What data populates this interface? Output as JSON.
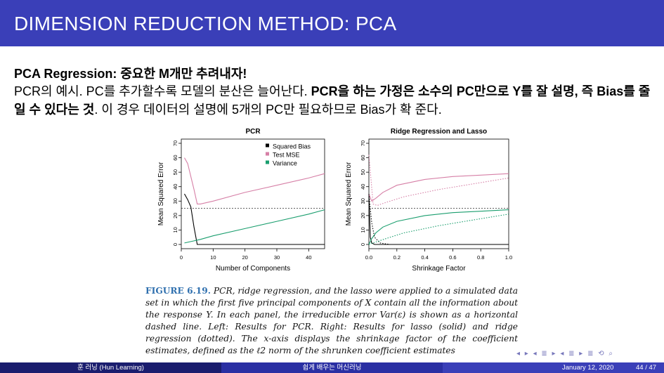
{
  "header": {
    "title": "DIMENSION REDUCTION METHOD: PCA"
  },
  "subtitle": "PCA Regression: 중요한 M개만 추려내자!",
  "paragraph": {
    "part1": "PCR의 예시. PC를 추가할수록 모델의 분산은 늘어난다. ",
    "bold": "PCR을 하는 가정은 소수의 PC만으로 Y를 잘 설명, 즉 Bias를 줄일 수 있다는 것",
    "part2": ". 이 경우 데이터의 설명에 5개의 PC만 필요하므로 Bias가 확 준다."
  },
  "caption": {
    "label": "FIGURE 6.19.",
    "text": " PCR, ridge regression, and the lasso were applied to a simulated data set in which the first five principal components of X contain all the information about the response Y. In each panel, the irreducible error Var(ε) is shown as a horizontal dashed line. Left: Results for PCR. Right: Results for lasso (solid) and ridge regression (dotted). The x-axis displays the shrinkage factor of the coefficient estimates, defined as the ℓ2 norm of the shrunken coefficient estimates"
  },
  "nav_symbols": "◂ ▸ ◂ ≣ ▸ ◂ ≣ ▸ ≣ ⟲ ⌕",
  "footer": {
    "author": "훈 러닝 (Hun Learning)",
    "center": "쉽게 배우는 머신러닝",
    "date": "January 12, 2020",
    "page": "44 / 47"
  },
  "colors": {
    "bias": "#000000",
    "mse": "#d67fa6",
    "variance": "#1a9e6e",
    "header": "#3a3fb8"
  },
  "chart_data": [
    {
      "type": "line",
      "title": "PCR",
      "xlabel": "Number of Components",
      "ylabel": "Mean Squared Error",
      "xlim": [
        0,
        45
      ],
      "ylim": [
        0,
        70
      ],
      "xticks": [
        0,
        10,
        20,
        30,
        40
      ],
      "yticks": [
        0,
        10,
        20,
        30,
        40,
        50,
        60,
        70
      ],
      "irreducible_error": 25,
      "legend": "top-right",
      "series": [
        {
          "name": "Squared Bias",
          "color": "#000000",
          "style": "solid",
          "x": [
            1,
            2,
            3,
            4,
            5,
            6,
            10,
            20,
            30,
            40,
            45
          ],
          "y": [
            35,
            31,
            26,
            12,
            0,
            0,
            0,
            0,
            0,
            0,
            0
          ]
        },
        {
          "name": "Test MSE",
          "color": "#d67fa6",
          "style": "solid",
          "x": [
            1,
            2,
            3,
            4,
            5,
            6,
            10,
            20,
            30,
            40,
            45
          ],
          "y": [
            60,
            56,
            47,
            38,
            28,
            28,
            30,
            36,
            41,
            46,
            49
          ]
        },
        {
          "name": "Variance",
          "color": "#1a9e6e",
          "style": "solid",
          "x": [
            1,
            2,
            3,
            4,
            5,
            6,
            10,
            20,
            30,
            40,
            45
          ],
          "y": [
            1,
            1.5,
            2,
            2.5,
            3,
            3.5,
            6,
            11,
            16,
            21,
            24
          ]
        }
      ]
    },
    {
      "type": "line",
      "title": "Ridge Regression and Lasso",
      "xlabel": "Shrinkage Factor",
      "ylabel": "Mean Squared Error",
      "xlim": [
        0,
        1
      ],
      "ylim": [
        0,
        70
      ],
      "xticks": [
        0.0,
        0.2,
        0.4,
        0.6,
        0.8,
        1.0
      ],
      "yticks": [
        0,
        10,
        20,
        30,
        40,
        50,
        60,
        70
      ],
      "irreducible_error": 25,
      "series": [
        {
          "color": "#000000",
          "style": "solid",
          "x": [
            0,
            0.01,
            0.02,
            0.04,
            0.1,
            0.3,
            0.6,
            1.0
          ],
          "y": [
            35,
            5,
            1,
            0,
            0,
            0,
            0,
            0
          ]
        },
        {
          "color": "#d67fa6",
          "style": "solid",
          "x": [
            0,
            0.02,
            0.05,
            0.1,
            0.2,
            0.4,
            0.6,
            0.8,
            1.0
          ],
          "y": [
            35,
            30,
            32,
            36,
            41,
            45,
            47,
            48,
            49
          ]
        },
        {
          "color": "#1a9e6e",
          "style": "solid",
          "x": [
            0,
            0.02,
            0.05,
            0.1,
            0.2,
            0.4,
            0.6,
            0.8,
            1.0
          ],
          "y": [
            0,
            4,
            8,
            12,
            16,
            20,
            22,
            23,
            24
          ]
        },
        {
          "color": "#000000",
          "style": "dotted",
          "x": [
            0,
            0.02,
            0.04,
            0.08,
            0.15,
            0.3,
            1.0
          ],
          "y": [
            35,
            15,
            5,
            1,
            0,
            0,
            0
          ]
        },
        {
          "color": "#d67fa6",
          "style": "dotted",
          "x": [
            0,
            0.03,
            0.06,
            0.12,
            0.25,
            0.5,
            0.75,
            1.0
          ],
          "y": [
            62,
            28,
            27,
            29,
            33,
            38,
            42,
            46
          ]
        },
        {
          "color": "#1a9e6e",
          "style": "dotted",
          "x": [
            0,
            0.03,
            0.06,
            0.12,
            0.25,
            0.5,
            0.75,
            1.0
          ],
          "y": [
            0,
            1,
            2,
            4,
            8,
            13,
            17,
            21
          ]
        }
      ]
    }
  ]
}
